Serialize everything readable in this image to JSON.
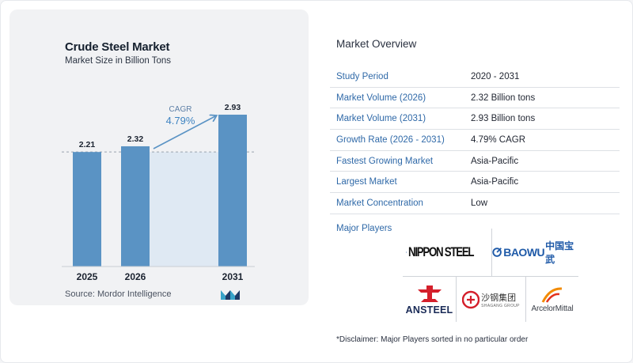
{
  "chart": {
    "title": "Crude Steel Market",
    "subtitle": "Market Size in Billion Tons",
    "source": "Source:  Mordor Intelligence",
    "cagr_label": "CAGR",
    "cagr_value": "4.79%",
    "colors": {
      "bar": "#5a93c4",
      "band": "#dfe9f3",
      "arrow": "#5a93c4",
      "cagr": "#3f84c1",
      "logo_dark": "#1e3a66",
      "logo_light": "#38a3c9"
    }
  },
  "chart_data": {
    "type": "bar",
    "categories": [
      "2025",
      "2026",
      "2031"
    ],
    "values": [
      2.21,
      2.32,
      2.93
    ],
    "value_labels": [
      "2.21",
      "2.32",
      "2.93"
    ],
    "title": "Crude Steel Market",
    "subtitle": "Market Size in Billion Tons",
    "xlabel": "",
    "ylabel": "",
    "ylim": [
      0,
      2.93
    ],
    "grid": false,
    "annotation": {
      "text": "CAGR 4.79%",
      "from": "2026",
      "to": "2031"
    }
  },
  "overview": {
    "title": "Market Overview",
    "rows": [
      {
        "key": "Study Period",
        "value": "2020 - 2031"
      },
      {
        "key": "Market Volume (2026)",
        "value": "2.32 Billion tons"
      },
      {
        "key": "Market Volume (2031)",
        "value": "2.93 Billion tons"
      },
      {
        "key": "Growth Rate (2026 - 2031)",
        "value": "4.79% CAGR"
      },
      {
        "key": "Fastest Growing Market",
        "value": "Asia-Pacific"
      },
      {
        "key": "Largest Market",
        "value": "Asia-Pacific"
      },
      {
        "key": "Market Concentration",
        "value": "Low"
      }
    ],
    "players_label": "Major Players"
  },
  "players": {
    "nippon": "NIPPON STEEL",
    "baowu": "BAOWU",
    "baowu_cn": "中国宝武",
    "ansteel": "ANSTEEL",
    "shagang_cn": "沙钢集团",
    "shagang_en": "SHAGANG GROUP",
    "arcelor": "ArcelorMittal"
  },
  "disclaimer": "*Disclaimer: Major Players sorted in no particular order"
}
